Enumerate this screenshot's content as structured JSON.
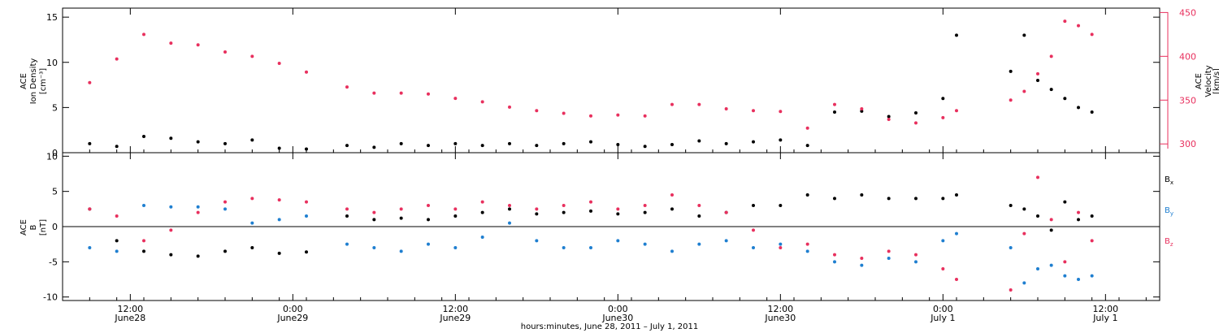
{
  "chart_data": [
    {
      "type": "scatter",
      "panel": "top",
      "ylabel_left": [
        "ACE",
        "Ion Density",
        "[cm⁻³]"
      ],
      "ylabel_right": [
        "ACE",
        "Velocity",
        "[km/s]"
      ],
      "ylim_left": [
        0,
        16
      ],
      "yticks_left": [
        0,
        5,
        10,
        15
      ],
      "ylim_right": [
        290,
        455
      ],
      "yticks_right": [
        300,
        350,
        400,
        450
      ],
      "series": [
        {
          "color": "#000000",
          "axis": "left",
          "x": [
            "06-28 09:00",
            "06-28 11:00",
            "06-28 13:00",
            "06-28 15:00",
            "06-28 17:00",
            "06-28 19:00",
            "06-28 21:00",
            "06-28 23:00",
            "06-29 01:00",
            "06-29 04:00",
            "06-29 06:00",
            "06-29 08:00",
            "06-29 10:00",
            "06-29 12:00",
            "06-29 14:00",
            "06-29 16:00",
            "06-29 18:00",
            "06-29 20:00",
            "06-29 22:00",
            "06-30 00:00",
            "06-30 02:00",
            "06-30 04:00",
            "06-30 06:00",
            "06-30 08:00",
            "06-30 10:00",
            "06-30 12:00",
            "06-30 14:00",
            "06-30 16:00",
            "06-30 18:00",
            "06-30 20:00",
            "06-30 22:00",
            "07-01 00:00",
            "07-01 01:00",
            "07-01 05:00",
            "07-01 06:00",
            "07-01 07:00",
            "07-01 08:00",
            "07-01 09:00",
            "07-01 10:00",
            "07-01 11:00"
          ],
          "y": [
            1.0,
            0.7,
            1.8,
            1.6,
            1.2,
            1.0,
            1.4,
            0.5,
            0.4,
            0.8,
            0.6,
            1.0,
            0.8,
            1.0,
            0.8,
            1.0,
            0.8,
            1.0,
            1.2,
            0.9,
            0.7,
            0.9,
            1.3,
            1.0,
            1.2,
            1.4,
            0.8,
            4.5,
            4.6,
            4.0,
            4.4,
            6.0,
            13.0,
            9.0,
            13.0,
            8.0,
            7.0,
            6.0,
            5.0,
            4.5
          ]
        },
        {
          "color": "#e8305e",
          "axis": "right",
          "x": [
            "06-28 09:00",
            "06-28 11:00",
            "06-28 13:00",
            "06-28 15:00",
            "06-28 17:00",
            "06-28 19:00",
            "06-28 21:00",
            "06-28 23:00",
            "06-29 01:00",
            "06-29 04:00",
            "06-29 06:00",
            "06-29 08:00",
            "06-29 10:00",
            "06-29 12:00",
            "06-29 14:00",
            "06-29 16:00",
            "06-29 18:00",
            "06-29 20:00",
            "06-29 22:00",
            "06-30 00:00",
            "06-30 02:00",
            "06-30 04:00",
            "06-30 06:00",
            "06-30 08:00",
            "06-30 10:00",
            "06-30 12:00",
            "06-30 14:00",
            "06-30 16:00",
            "06-30 18:00",
            "06-30 20:00",
            "06-30 22:00",
            "07-01 00:00",
            "07-01 01:00",
            "07-01 05:00",
            "07-01 06:00",
            "07-01 07:00",
            "07-01 08:00",
            "07-01 09:00",
            "07-01 10:00",
            "07-01 11:00"
          ],
          "y": [
            370,
            397,
            425,
            415,
            413,
            405,
            400,
            392,
            382,
            365,
            358,
            358,
            357,
            352,
            348,
            342,
            338,
            335,
            332,
            333,
            332,
            345,
            345,
            340,
            338,
            337,
            318,
            345,
            340,
            328,
            324,
            330,
            338,
            350,
            360,
            380,
            400,
            440,
            435,
            425
          ]
        }
      ]
    },
    {
      "type": "scatter",
      "panel": "bottom",
      "ylabel_left": [
        "ACE",
        "B",
        "[nT]"
      ],
      "ylim_left": [
        -10.5,
        10.5
      ],
      "yticks_left": [
        -10,
        -5,
        0,
        5,
        10
      ],
      "zero_line": true,
      "legend": [
        "Bx",
        "By",
        "Bz"
      ],
      "series": [
        {
          "name": "Bx",
          "color": "#000000",
          "x": [
            "06-28 09:00",
            "06-28 11:00",
            "06-28 13:00",
            "06-28 15:00",
            "06-28 17:00",
            "06-28 19:00",
            "06-28 21:00",
            "06-28 23:00",
            "06-29 01:00",
            "06-29 04:00",
            "06-29 06:00",
            "06-29 08:00",
            "06-29 10:00",
            "06-29 12:00",
            "06-29 14:00",
            "06-29 16:00",
            "06-29 18:00",
            "06-29 20:00",
            "06-29 22:00",
            "06-30 00:00",
            "06-30 02:00",
            "06-30 04:00",
            "06-30 06:00",
            "06-30 08:00",
            "06-30 10:00",
            "06-30 12:00",
            "06-30 14:00",
            "06-30 16:00",
            "06-30 18:00",
            "06-30 20:00",
            "06-30 22:00",
            "07-01 00:00",
            "07-01 01:00",
            "07-01 05:00",
            "07-01 06:00",
            "07-01 07:00",
            "07-01 08:00",
            "07-01 09:00",
            "07-01 10:00",
            "07-01 11:00"
          ],
          "y": [
            2.5,
            -2.0,
            -3.5,
            -4.0,
            -4.2,
            -3.5,
            -3.0,
            -3.8,
            -3.6,
            1.5,
            1.0,
            1.2,
            1.0,
            1.5,
            2.0,
            2.5,
            1.8,
            2.0,
            2.2,
            1.8,
            2.0,
            2.5,
            1.5,
            2.0,
            3.0,
            3.0,
            4.5,
            4.0,
            4.5,
            4.0,
            4.0,
            4.0,
            4.5,
            3.0,
            2.5,
            1.5,
            -0.5,
            3.5,
            1.0,
            1.5
          ]
        },
        {
          "name": "By",
          "color": "#1f7fd0",
          "x": [
            "06-28 09:00",
            "06-28 11:00",
            "06-28 13:00",
            "06-28 15:00",
            "06-28 17:00",
            "06-28 19:00",
            "06-28 21:00",
            "06-28 23:00",
            "06-29 01:00",
            "06-29 04:00",
            "06-29 06:00",
            "06-29 08:00",
            "06-29 10:00",
            "06-29 12:00",
            "06-29 14:00",
            "06-29 16:00",
            "06-29 18:00",
            "06-29 20:00",
            "06-29 22:00",
            "06-30 00:00",
            "06-30 02:00",
            "06-30 04:00",
            "06-30 06:00",
            "06-30 08:00",
            "06-30 10:00",
            "06-30 12:00",
            "06-30 14:00",
            "06-30 16:00",
            "06-30 18:00",
            "06-30 20:00",
            "06-30 22:00",
            "07-01 00:00",
            "07-01 01:00",
            "07-01 05:00",
            "07-01 06:00",
            "07-01 07:00",
            "07-01 08:00",
            "07-01 09:00",
            "07-01 10:00",
            "07-01 11:00"
          ],
          "y": [
            -3.0,
            -3.5,
            3.0,
            2.8,
            2.8,
            2.5,
            0.5,
            1.0,
            1.5,
            -2.5,
            -3.0,
            -3.5,
            -2.5,
            -3.0,
            -1.5,
            0.5,
            -2.0,
            -3.0,
            -3.0,
            -2.0,
            -2.5,
            -3.5,
            -2.5,
            -2.0,
            -3.0,
            -2.5,
            -3.5,
            -5.0,
            -5.5,
            -4.5,
            -5.0,
            -2.0,
            -1.0,
            -3.0,
            -8.0,
            -6.0,
            -5.5,
            -7.0,
            -7.5,
            -7.0
          ]
        },
        {
          "name": "Bz",
          "color": "#e8305e",
          "x": [
            "06-28 09:00",
            "06-28 11:00",
            "06-28 13:00",
            "06-28 15:00",
            "06-28 17:00",
            "06-28 19:00",
            "06-28 21:00",
            "06-28 23:00",
            "06-29 01:00",
            "06-29 04:00",
            "06-29 06:00",
            "06-29 08:00",
            "06-29 10:00",
            "06-29 12:00",
            "06-29 14:00",
            "06-29 16:00",
            "06-29 18:00",
            "06-29 20:00",
            "06-29 22:00",
            "06-30 00:00",
            "06-30 02:00",
            "06-30 04:00",
            "06-30 06:00",
            "06-30 08:00",
            "06-30 10:00",
            "06-30 12:00",
            "06-30 14:00",
            "06-30 16:00",
            "06-30 18:00",
            "06-30 20:00",
            "06-30 22:00",
            "07-01 00:00",
            "07-01 01:00",
            "07-01 05:00",
            "07-01 06:00",
            "07-01 07:00",
            "07-01 08:00",
            "07-01 09:00",
            "07-01 10:00",
            "07-01 11:00"
          ],
          "y": [
            2.5,
            1.5,
            -2.0,
            -0.5,
            2.0,
            3.5,
            4.0,
            3.8,
            3.5,
            2.5,
            2.0,
            2.5,
            3.0,
            2.5,
            3.5,
            3.0,
            2.5,
            3.0,
            3.5,
            2.5,
            3.0,
            4.5,
            3.0,
            2.0,
            -0.5,
            -3.0,
            -2.5,
            -4.0,
            -4.5,
            -3.5,
            -4.0,
            -6.0,
            -7.5,
            -9.0,
            -1.0,
            7.0,
            1.0,
            -5.0,
            2.0,
            -2.0
          ]
        }
      ]
    }
  ],
  "axes": {
    "x_tick_labels": [
      {
        "time": "12:00",
        "day": "June28"
      },
      {
        "time": "0:00",
        "day": "June29"
      },
      {
        "time": "12:00",
        "day": "June29"
      },
      {
        "time": "0:00",
        "day": "June30"
      },
      {
        "time": "12:00",
        "day": "June30"
      },
      {
        "time": "0:00",
        "day": "July 1"
      },
      {
        "time": "12:00",
        "day": "July 1"
      }
    ],
    "xlabel": "hours:minutes, June 28, 2011 – July  1, 2011"
  }
}
